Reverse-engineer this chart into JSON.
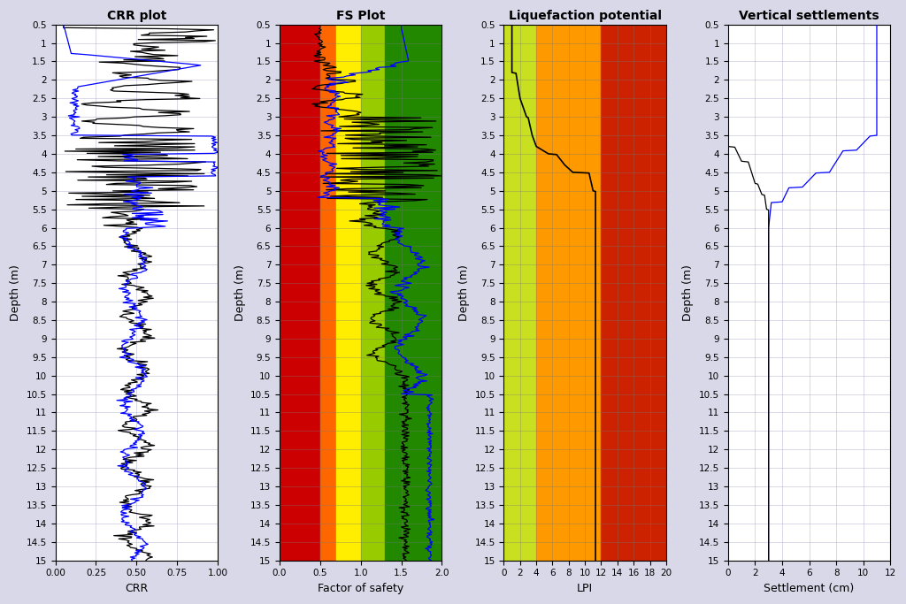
{
  "title_crr": "CRR plot",
  "title_fs": "FS Plot",
  "title_lpi": "Liquefaction potential",
  "title_vs": "Vertical settlements",
  "xlabel_crr": "CRR",
  "xlabel_fs": "Factor of safety",
  "xlabel_lpi": "LPI",
  "xlabel_vs": "Settlement (cm)",
  "ylabel": "Depth (m)",
  "depth_min": 0.5,
  "depth_max": 15.0,
  "crr_xlim": [
    0,
    1
  ],
  "fs_xlim": [
    0,
    2
  ],
  "lpi_xlim": [
    0,
    20
  ],
  "vs_xlim": [
    0,
    12
  ],
  "crr_xticks": [
    0,
    0.25,
    0.5,
    0.75,
    1
  ],
  "fs_xticks": [
    0,
    0.5,
    1,
    1.5,
    2
  ],
  "lpi_xticks": [
    0,
    2,
    4,
    6,
    8,
    10,
    12,
    14,
    16,
    18,
    20
  ],
  "vs_xticks": [
    0,
    2,
    4,
    6,
    8,
    10,
    12
  ],
  "depth_yticks": [
    0.5,
    1,
    1.5,
    2,
    2.5,
    3,
    3.5,
    4,
    4.5,
    5,
    5.5,
    6,
    6.5,
    7,
    7.5,
    8,
    8.5,
    9,
    9.5,
    10,
    10.5,
    11,
    11.5,
    12,
    12.5,
    13,
    13.5,
    14,
    14.5,
    15
  ],
  "fs_colors": [
    {
      "xmin": 0,
      "xmax": 0.5,
      "color": "#cc0000"
    },
    {
      "xmin": 0.5,
      "xmax": 0.7,
      "color": "#ff6600"
    },
    {
      "xmin": 0.7,
      "xmax": 1.0,
      "color": "#ffee00"
    },
    {
      "xmin": 1.0,
      "xmax": 1.3,
      "color": "#99cc00"
    },
    {
      "xmin": 1.3,
      "xmax": 2.0,
      "color": "#228800"
    }
  ],
  "lpi_colors": [
    {
      "xmin": 0,
      "xmax": 4,
      "color": "#c8e020"
    },
    {
      "xmin": 4,
      "xmax": 12,
      "color": "#ff9900"
    },
    {
      "xmin": 12,
      "xmax": 20,
      "color": "#cc2200"
    }
  ],
  "bg_color": "#d8d8e8",
  "panel_bg": "#ffffff",
  "grid_color": "#aaaacc",
  "font_size_title": 10,
  "font_size_label": 9,
  "font_size_tick": 7.5,
  "line_width": 0.9
}
